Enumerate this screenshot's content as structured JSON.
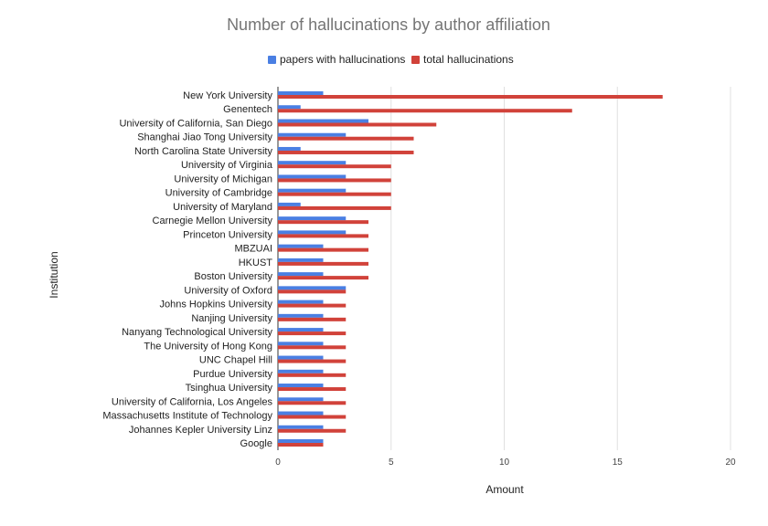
{
  "chart_data": {
    "type": "bar",
    "orientation": "horizontal",
    "title": "Number of hallucinations by author affiliation",
    "xlabel": "Amount",
    "ylabel": "Institution",
    "xlim": [
      0,
      20
    ],
    "xticks": [
      0,
      5,
      10,
      15,
      20
    ],
    "grid": true,
    "legend_position": "top",
    "categories": [
      "New York University",
      "Genentech",
      "University of California, San Diego",
      "Shanghai Jiao Tong University",
      "North Carolina State University",
      "University of Virginia",
      "University of Michigan",
      "University of Cambridge",
      "University of Maryland",
      "Carnegie Mellon University",
      "Princeton University",
      "MBZUAI",
      "HKUST",
      "Boston University",
      "University of Oxford",
      "Johns Hopkins University",
      "Nanjing University",
      "Nanyang Technological University",
      "The University of Hong Kong",
      "UNC Chapel Hill",
      "Purdue University",
      "Tsinghua University",
      "University of California, Los Angeles",
      "Massachusetts Institute of Technology",
      "Johannes Kepler University Linz",
      "Google"
    ],
    "series": [
      {
        "name": "papers with hallucinations",
        "color": "#4a7fe3",
        "values": [
          2,
          1,
          4,
          3,
          1,
          3,
          3,
          3,
          1,
          3,
          3,
          2,
          2,
          2,
          3,
          2,
          2,
          2,
          2,
          2,
          2,
          2,
          2,
          2,
          2,
          2
        ]
      },
      {
        "name": "total hallucinations",
        "color": "#d1423a",
        "values": [
          17,
          13,
          7,
          6,
          6,
          5,
          5,
          5,
          5,
          4,
          4,
          4,
          4,
          4,
          3,
          3,
          3,
          3,
          3,
          3,
          3,
          3,
          3,
          3,
          3,
          2
        ]
      }
    ]
  }
}
